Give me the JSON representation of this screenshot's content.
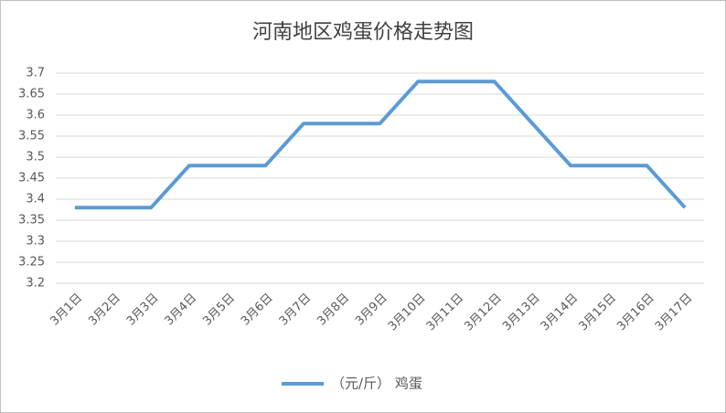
{
  "chart_data": {
    "type": "line",
    "title": "河南地区鸡蛋价格走势图",
    "categories": [
      "3月1日",
      "3月2日",
      "3月3日",
      "3月4日",
      "3月5日",
      "3月6日",
      "3月7日",
      "3月8日",
      "3月9日",
      "3月10日",
      "3月11日",
      "3月12日",
      "3月13日",
      "3月14日",
      "3月15日",
      "3月16日",
      "3月17日"
    ],
    "series": [
      {
        "name": "（元/斤） 鸡蛋",
        "color": "#5b9bd5",
        "values": [
          3.38,
          3.38,
          3.38,
          3.48,
          3.48,
          3.48,
          3.58,
          3.58,
          3.58,
          3.68,
          3.68,
          3.68,
          3.58,
          3.48,
          3.48,
          3.48,
          3.38
        ]
      }
    ],
    "ylim": [
      3.2,
      3.7
    ],
    "yticks": [
      3.2,
      3.25,
      3.3,
      3.35,
      3.4,
      3.45,
      3.5,
      3.55,
      3.6,
      3.65,
      3.7
    ],
    "grid": true,
    "legend": "bottom"
  }
}
